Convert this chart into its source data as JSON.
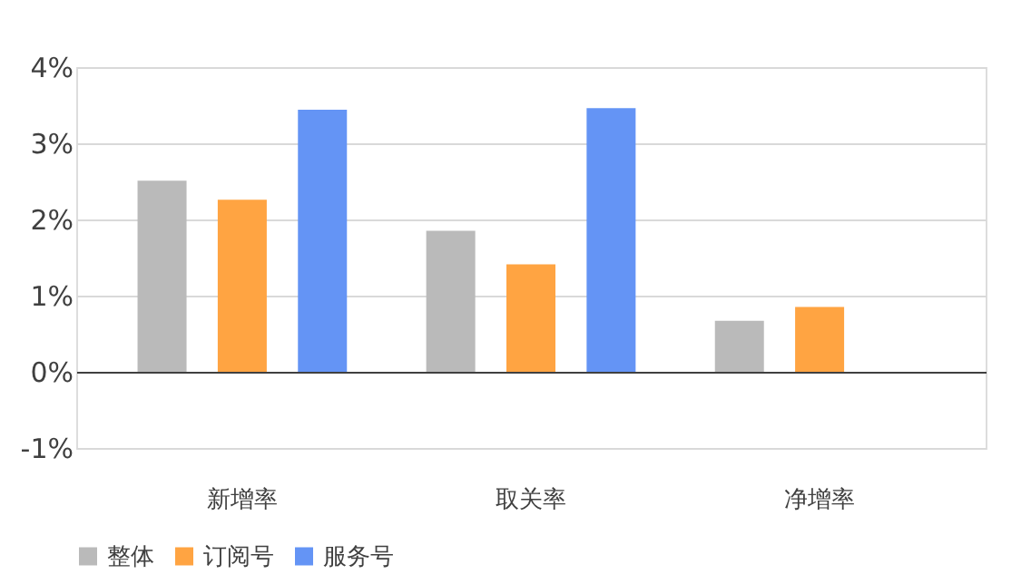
{
  "chart_data": {
    "type": "bar",
    "categories": [
      "新增率",
      "取关率",
      "净增率"
    ],
    "series": [
      {
        "name": "整体",
        "color": "#bababa",
        "values": [
          2.51,
          1.85,
          0.67
        ]
      },
      {
        "name": "订阅号",
        "color": "#ffa442",
        "values": [
          2.26,
          1.41,
          0.85
        ]
      },
      {
        "name": "服务号",
        "color": "#6494f5",
        "values": [
          3.44,
          3.46,
          null
        ]
      }
    ],
    "ylim": [
      -1,
      4
    ],
    "yticks": [
      {
        "value": -1,
        "label": "-1%"
      },
      {
        "value": 0,
        "label": "0%"
      },
      {
        "value": 1,
        "label": "1%"
      },
      {
        "value": 2,
        "label": "2%"
      },
      {
        "value": 3,
        "label": "3%"
      },
      {
        "value": 4,
        "label": "4%"
      }
    ],
    "grid": "y",
    "legend": "bottom"
  }
}
